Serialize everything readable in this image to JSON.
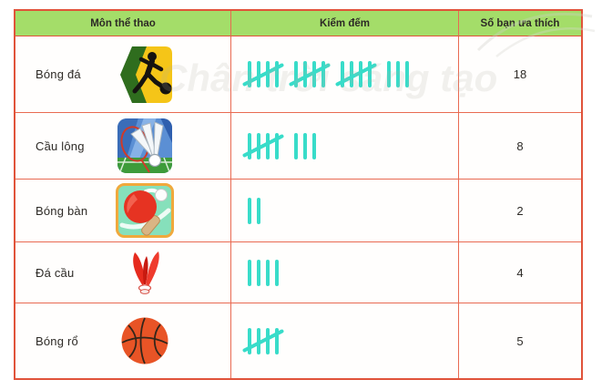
{
  "table": {
    "headers": [
      "Môn thể thao",
      "Kiểm đếm",
      "Số bạn ưa thích"
    ],
    "rows": [
      {
        "name": "Bóng đá",
        "icon": "football-icon",
        "tally": 18,
        "count": "18"
      },
      {
        "name": "Cầu lông",
        "icon": "badminton-icon",
        "tally": 8,
        "count": "8"
      },
      {
        "name": "Bóng bàn",
        "icon": "table-tennis-icon",
        "tally": 2,
        "count": "2"
      },
      {
        "name": "Đá cầu",
        "icon": "shuttlecock-icon",
        "tally": 4,
        "count": "4"
      },
      {
        "name": "Bóng rổ",
        "icon": "basketball-icon",
        "tally": 5,
        "count": "5"
      }
    ]
  },
  "watermark": "Chân trời sáng tạo",
  "colors": {
    "header_bg": "#a4dd69",
    "border_color": "#e0533a",
    "inner_line": "#e96a52",
    "tally_color": "#38dcc9",
    "text_color": "#2d2a26"
  }
}
